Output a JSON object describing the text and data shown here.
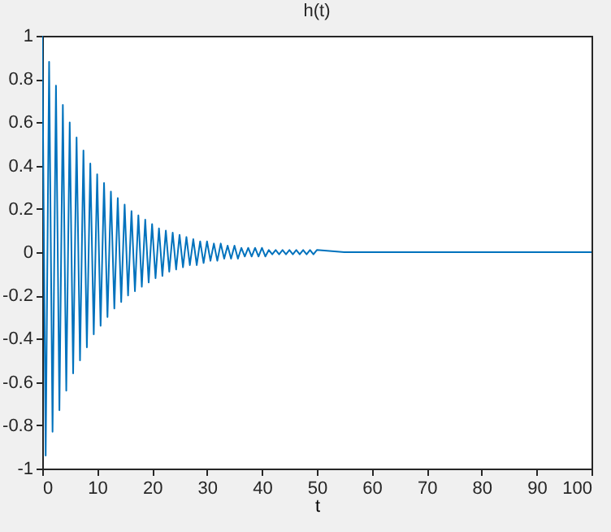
{
  "chart_data": {
    "type": "line",
    "title": "h(t)",
    "xlabel": "t",
    "xlim": [
      0,
      100
    ],
    "xticks": [
      0,
      10,
      20,
      30,
      40,
      50,
      60,
      70,
      80,
      90,
      100
    ],
    "ylim": [
      -1,
      1
    ],
    "yticks": [
      -1,
      -0.8,
      -0.6,
      -0.4,
      -0.2,
      0,
      0.2,
      0.4,
      0.6,
      0.8,
      1
    ],
    "grid": false,
    "series": [
      {
        "color": "#0072bd",
        "x": [
          0,
          0.625,
          1.25,
          1.875,
          2.5,
          3.125,
          3.75,
          4.375,
          5.0,
          5.625,
          6.25,
          6.875,
          7.5,
          8.125,
          8.75,
          9.375,
          10.0,
          10.625,
          11.25,
          11.875,
          12.5,
          13.125,
          13.75,
          14.375,
          15.0,
          15.625,
          16.25,
          16.875,
          17.5,
          18.125,
          18.75,
          19.375,
          20.0,
          20.625,
          21.25,
          21.875,
          22.5,
          23.125,
          23.75,
          24.375,
          25.0,
          25.625,
          26.25,
          26.875,
          27.5,
          28.125,
          28.75,
          29.375,
          30.0,
          30.625,
          31.25,
          31.875,
          32.5,
          33.125,
          33.75,
          34.375,
          35.0,
          35.625,
          36.25,
          36.875,
          37.5,
          38.125,
          38.75,
          39.375,
          40.0,
          40.625,
          41.25,
          41.875,
          42.5,
          43.125,
          43.75,
          44.375,
          45.0,
          45.625,
          46.25,
          46.875,
          47.5,
          48.125,
          48.75,
          49.375,
          50.0,
          55,
          100
        ],
        "values": [
          1.0,
          -0.94,
          0.88,
          -0.83,
          0.77,
          -0.73,
          0.68,
          -0.64,
          0.6,
          -0.56,
          0.53,
          -0.5,
          0.47,
          -0.44,
          0.41,
          -0.38,
          0.36,
          -0.34,
          0.32,
          -0.3,
          0.28,
          -0.26,
          0.25,
          -0.23,
          0.22,
          -0.2,
          0.19,
          -0.18,
          0.17,
          -0.16,
          0.15,
          -0.14,
          0.13,
          -0.12,
          0.11,
          -0.11,
          0.1,
          -0.09,
          0.09,
          -0.08,
          0.08,
          -0.07,
          0.07,
          -0.06,
          0.06,
          -0.06,
          0.05,
          -0.05,
          0.05,
          -0.04,
          0.04,
          -0.04,
          0.04,
          -0.03,
          0.03,
          -0.03,
          0.03,
          -0.03,
          0.02,
          -0.02,
          0.02,
          -0.02,
          0.02,
          -0.02,
          0.02,
          -0.02,
          0.01,
          -0.01,
          0.01,
          -0.01,
          0.01,
          -0.01,
          0.01,
          -0.01,
          0.01,
          -0.01,
          0.01,
          -0.01,
          0.01,
          -0.01,
          0.01,
          0,
          0
        ]
      }
    ]
  }
}
